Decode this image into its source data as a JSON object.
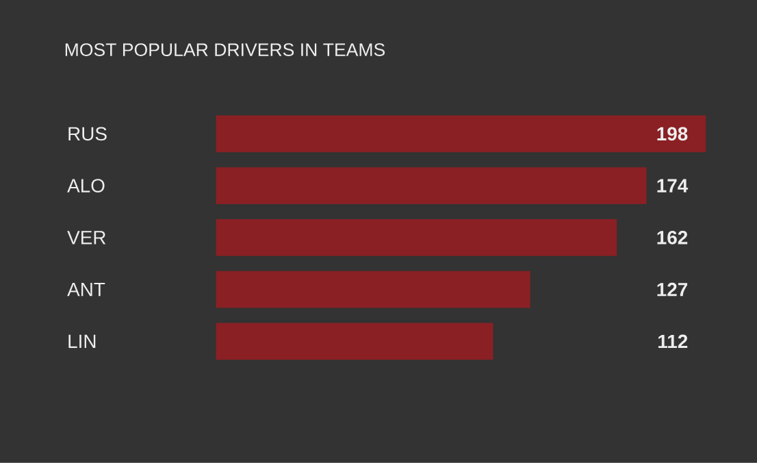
{
  "chart_data": {
    "type": "bar",
    "orientation": "horizontal",
    "title": "MOST POPULAR DRIVERS IN TEAMS",
    "categories": [
      "RUS",
      "ALO",
      "VER",
      "ANT",
      "LIN"
    ],
    "values": [
      198,
      174,
      162,
      127,
      112
    ],
    "color": "#8a2024",
    "data_labels": true
  }
}
